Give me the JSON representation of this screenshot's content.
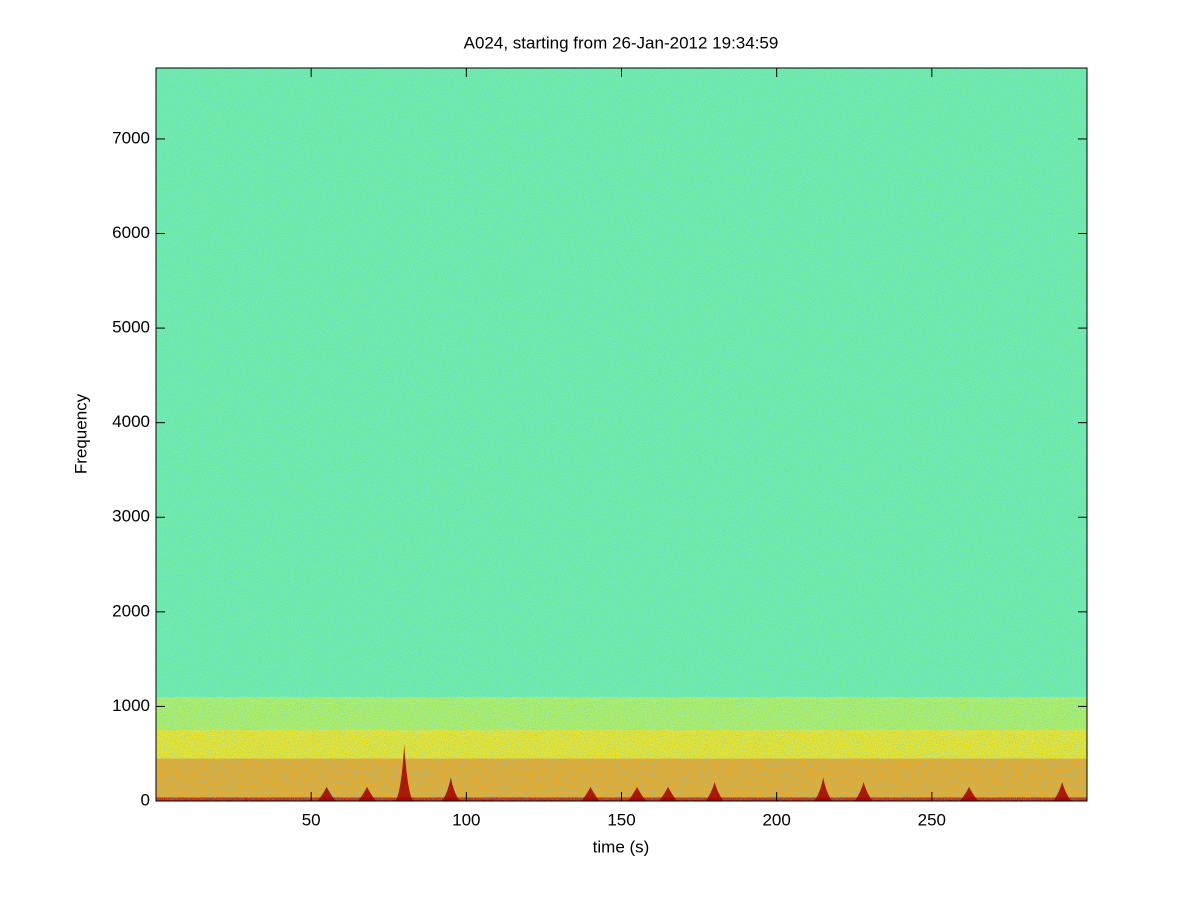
{
  "chart_data": {
    "type": "spectrogram",
    "title": "A024, starting from 26-Jan-2012 19:34:59",
    "xlabel": "time (s)",
    "ylabel": "Frequency",
    "xlim": [
      0,
      300
    ],
    "ylim": [
      0,
      7750
    ],
    "xticks": [
      50,
      100,
      150,
      200,
      250
    ],
    "yticks": [
      0,
      1000,
      2000,
      3000,
      4000,
      5000,
      6000,
      7000
    ],
    "bands": [
      {
        "from": 0,
        "to": 40,
        "color": "#c8280a"
      },
      {
        "from": 40,
        "to": 450,
        "color": "#f0a81e"
      },
      {
        "from": 450,
        "to": 750,
        "color": "#f2e41e"
      },
      {
        "from": 750,
        "to": 1100,
        "color": "#b4f05a"
      },
      {
        "from": 1100,
        "to": 7750,
        "color": "#74eea0"
      }
    ],
    "bursts": [
      {
        "t": 55,
        "f": 150
      },
      {
        "t": 68,
        "f": 150
      },
      {
        "t": 80,
        "f": 600
      },
      {
        "t": 95,
        "f": 250
      },
      {
        "t": 140,
        "f": 150
      },
      {
        "t": 155,
        "f": 150
      },
      {
        "t": 165,
        "f": 150
      },
      {
        "t": 180,
        "f": 200
      },
      {
        "t": 215,
        "f": 250
      },
      {
        "t": 228,
        "f": 200
      },
      {
        "t": 262,
        "f": 150
      },
      {
        "t": 292,
        "f": 200
      }
    ],
    "burst_color": "#a00000"
  }
}
